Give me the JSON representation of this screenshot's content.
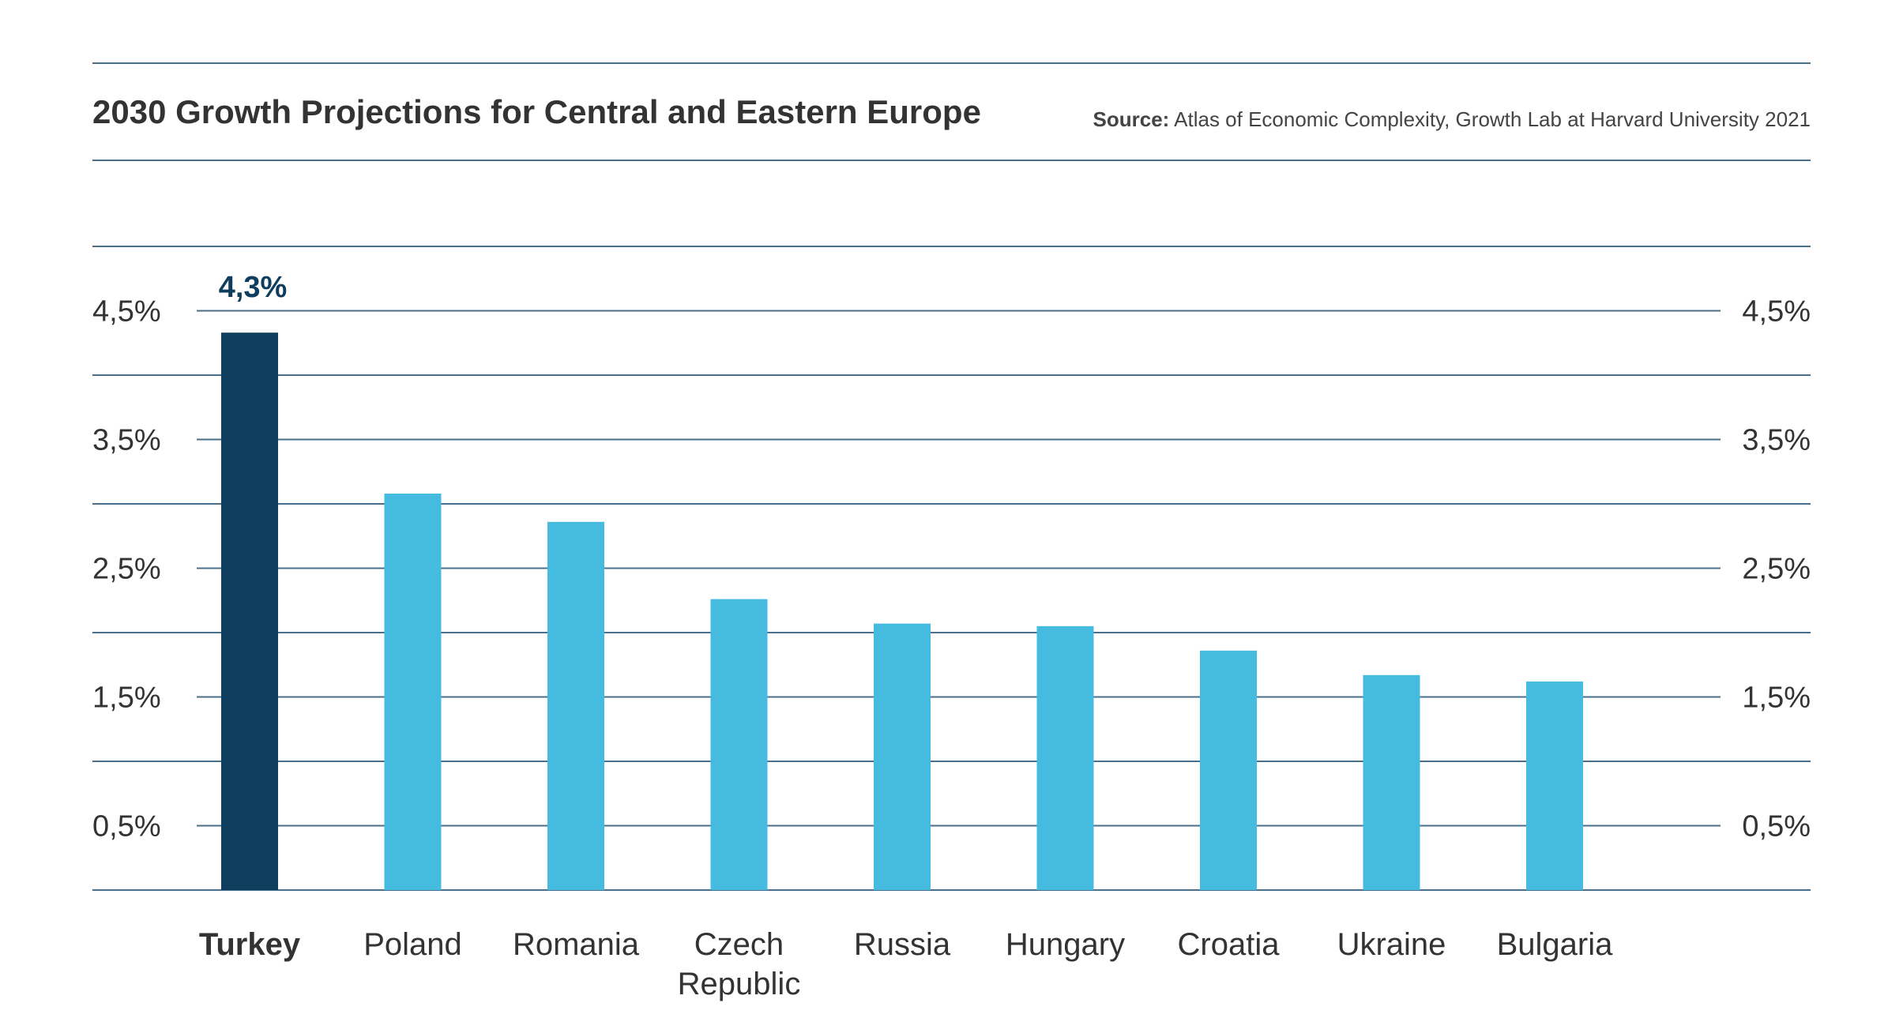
{
  "title": "2030 Growth Projections for Central and Eastern Europe",
  "source": {
    "label": "Source:",
    "text": "Atlas of Economic Complexity, Growth Lab at Harvard University 2021"
  },
  "colors": {
    "highlight": "#0f3d5e",
    "bar": "#45bbe0",
    "grid": "#4a6f8a",
    "text": "#333333"
  },
  "chart_data": {
    "type": "bar",
    "categories": [
      "Turkey",
      "Poland",
      "Romania",
      "Czech Republic",
      "Russia",
      "Hungary",
      "Croatia",
      "Ukraine",
      "Bulgaria"
    ],
    "category_lines": [
      [
        "Turkey"
      ],
      [
        "Poland"
      ],
      [
        "Romania"
      ],
      [
        "Czech",
        "Republic"
      ],
      [
        "Russia"
      ],
      [
        "Hungary"
      ],
      [
        "Croatia"
      ],
      [
        "Ukraine"
      ],
      [
        "Bulgaria"
      ]
    ],
    "values": [
      4.33,
      3.08,
      2.86,
      2.26,
      2.07,
      2.05,
      1.86,
      1.67,
      1.62
    ],
    "highlight_index": 0,
    "highlight_label": "4,3%",
    "ylim": [
      0,
      5
    ],
    "gridlines": [
      0.5,
      1,
      1.5,
      2,
      2.5,
      3,
      3.5,
      4,
      4.5,
      5
    ],
    "yticks": [
      0.5,
      1.5,
      2.5,
      3.5,
      4.5
    ],
    "ytick_labels": [
      "0,5%",
      "1,5%",
      "2,5%",
      "3,5%",
      "4,5%"
    ],
    "ytick_label_sides": [
      "left",
      "right"
    ],
    "xlabel": "",
    "ylabel": "",
    "grid": true,
    "legend": "none"
  }
}
